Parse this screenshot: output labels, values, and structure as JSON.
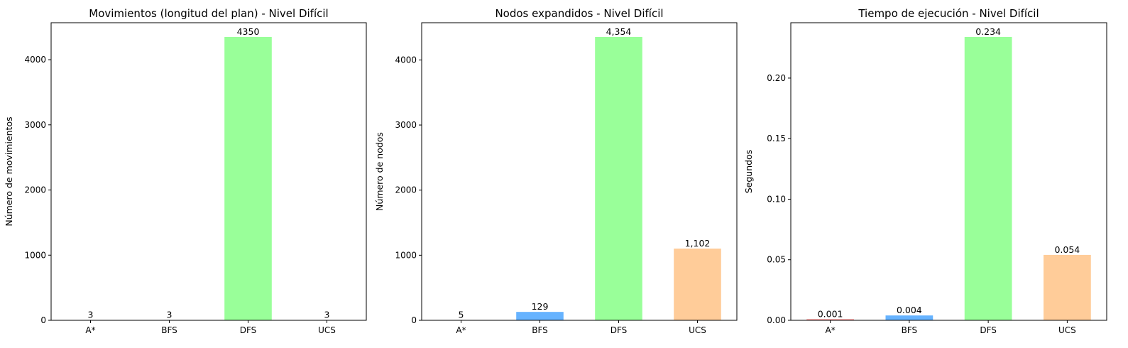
{
  "chart_data": [
    {
      "type": "bar",
      "title": "Movimientos (longitud del plan) - Nivel Difícil",
      "xlabel": "",
      "ylabel": "Número de movimientos",
      "categories": [
        "A*",
        "BFS",
        "DFS",
        "UCS"
      ],
      "values": [
        3,
        3,
        4350,
        3
      ],
      "value_labels": [
        "3",
        "3",
        "4350",
        "3"
      ],
      "colors": [
        "#ff9999",
        "#66b3ff",
        "#99ff99",
        "#ffcc99"
      ],
      "ylim": [
        0,
        4567.5
      ],
      "yticks": [
        0,
        1000,
        2000,
        3000,
        4000
      ],
      "ytick_labels": [
        "0",
        "1000",
        "2000",
        "3000",
        "4000"
      ],
      "grid": false
    },
    {
      "type": "bar",
      "title": "Nodos expandidos - Nivel Difícil",
      "xlabel": "",
      "ylabel": "Número de nodos",
      "categories": [
        "A*",
        "BFS",
        "DFS",
        "UCS"
      ],
      "values": [
        5,
        129,
        4354,
        1102
      ],
      "value_labels": [
        "5",
        "129",
        "4,354",
        "1,102"
      ],
      "colors": [
        "#ff9999",
        "#66b3ff",
        "#99ff99",
        "#ffcc99"
      ],
      "ylim": [
        0,
        4571.7
      ],
      "yticks": [
        0,
        1000,
        2000,
        3000,
        4000
      ],
      "ytick_labels": [
        "0",
        "1000",
        "2000",
        "3000",
        "4000"
      ],
      "grid": false
    },
    {
      "type": "bar",
      "title": "Tiempo de ejecución - Nivel Difícil",
      "xlabel": "",
      "ylabel": "Segundos",
      "categories": [
        "A*",
        "BFS",
        "DFS",
        "UCS"
      ],
      "values": [
        0.001,
        0.004,
        0.234,
        0.054
      ],
      "value_labels": [
        "0.001",
        "0.004",
        "0.234",
        "0.054"
      ],
      "colors": [
        "#ff9999",
        "#66b3ff",
        "#99ff99",
        "#ffcc99"
      ],
      "ylim": [
        0,
        0.2457
      ],
      "yticks": [
        0,
        0.05,
        0.1,
        0.15,
        0.2
      ],
      "ytick_labels": [
        "0.00",
        "0.05",
        "0.10",
        "0.15",
        "0.20"
      ],
      "grid": false
    }
  ]
}
